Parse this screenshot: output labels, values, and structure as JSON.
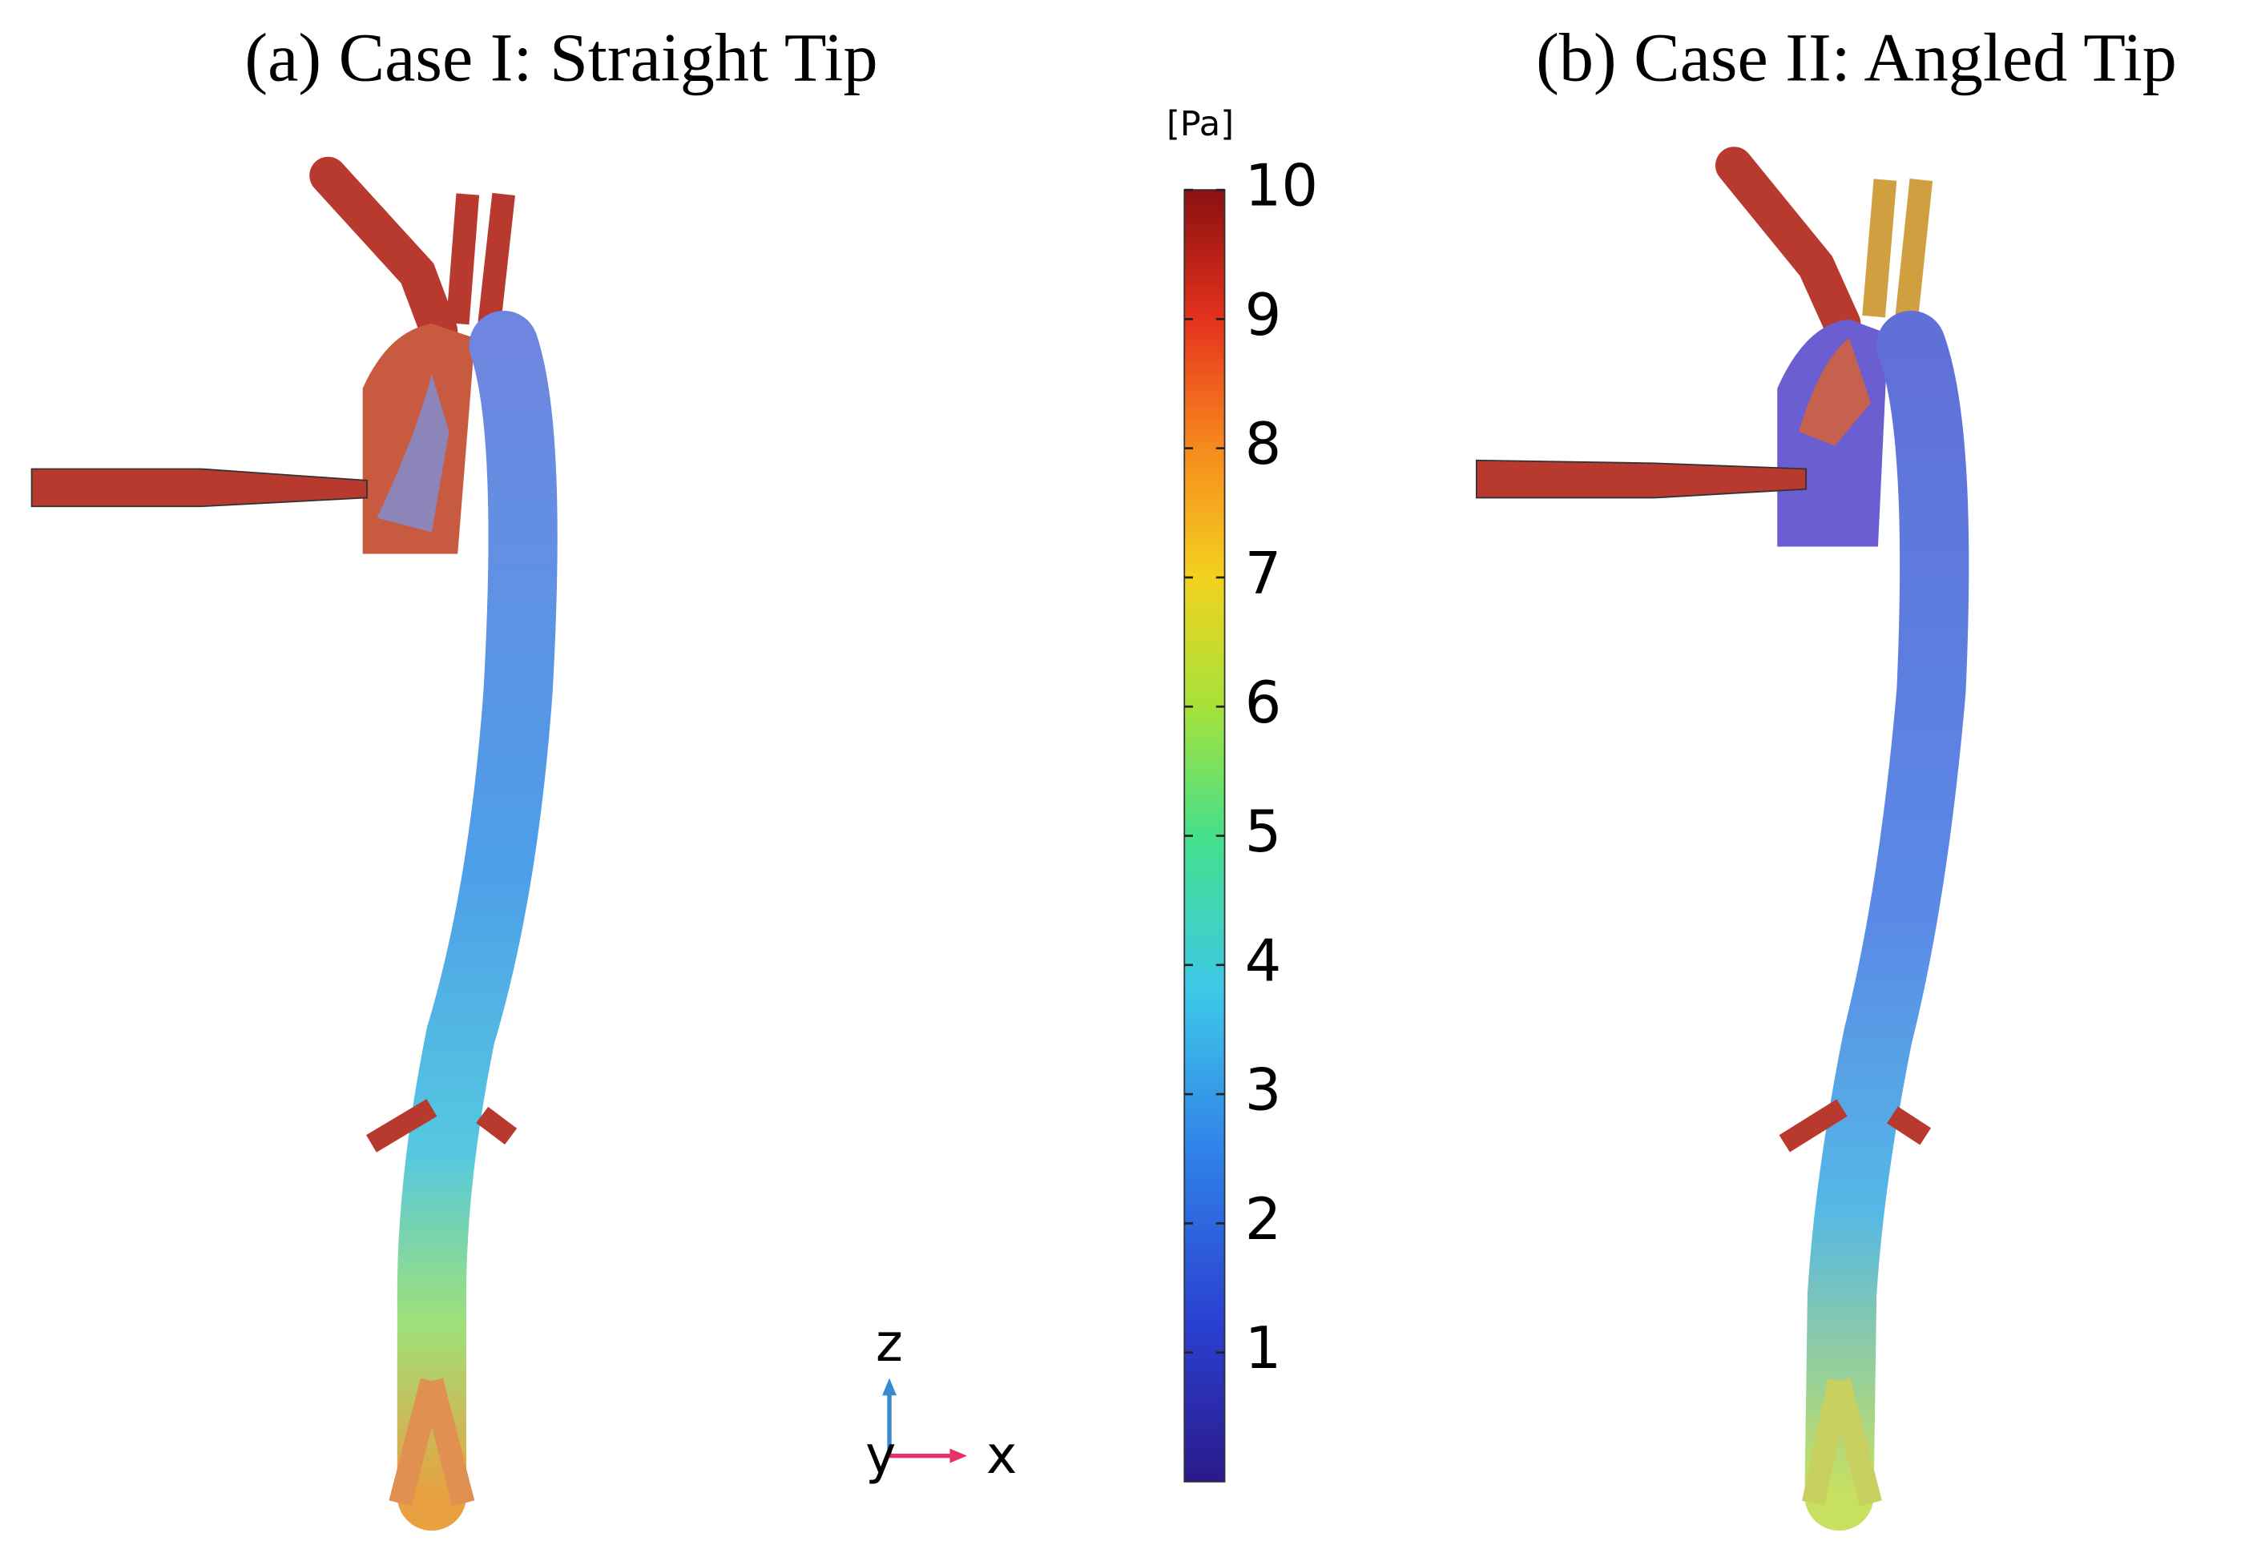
{
  "panels": [
    {
      "title": "(a) Case I: Straight Tip"
    },
    {
      "title": "(b) Case II: Angled Tip"
    }
  ],
  "colorbar": {
    "unit": "[Pa]",
    "lim": [
      0,
      10
    ],
    "ticks": [
      1,
      2,
      3,
      4,
      5,
      6,
      7,
      8,
      9,
      10
    ]
  },
  "axes_triad": {
    "labels": [
      "z",
      "y",
      "x"
    ]
  }
}
